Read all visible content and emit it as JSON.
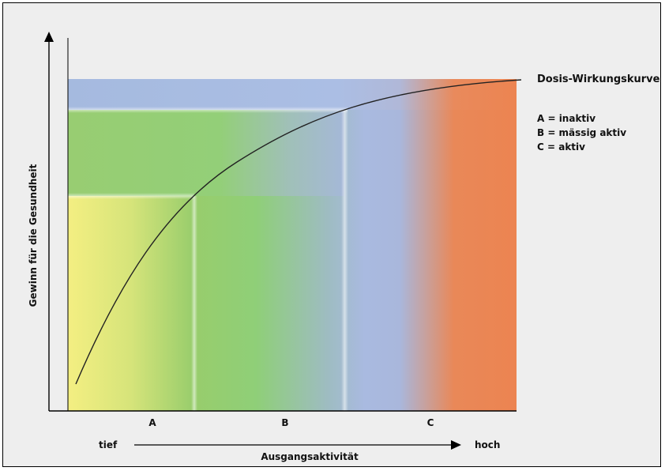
{
  "diagram": {
    "curve_label": "Dosis-Wirkungskurve",
    "legend": [
      "A = inaktiv",
      "B = mässig aktiv",
      "C = aktiv"
    ],
    "y_axis_label": "Gewinn für die Gesundheit",
    "x_axis_label": "Ausgangsaktivität",
    "x_low": "tief",
    "x_high": "hoch",
    "zones": [
      "A",
      "B",
      "C"
    ]
  },
  "colors": {
    "background": "#eeeeee",
    "zone_a_yellow": "#f2ee7f",
    "zone_a_green": "#9ccf6a",
    "zone_b_green": "#8ecf78",
    "zone_b_blue": "#a6b9df",
    "zone_c_orange": "#ec8552",
    "top_band_blue": "#a8bde4",
    "curve": "#222222"
  }
}
